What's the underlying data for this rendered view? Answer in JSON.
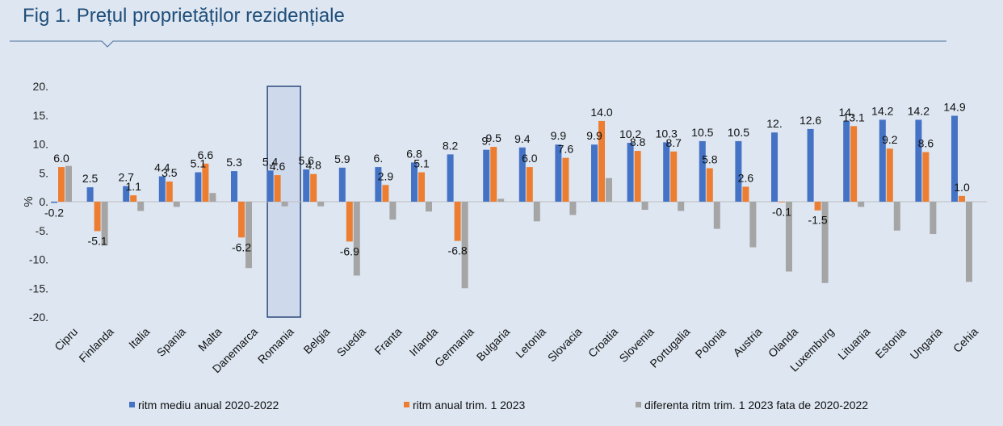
{
  "figure": {
    "title": "Fig 1. Prețul proprietăților rezidențiale"
  },
  "colors": {
    "background": "#dde6f1",
    "title": "#1f4e79",
    "rule": "#4a6f99",
    "highlight_fill": "#cfd9ec",
    "highlight_stroke": "#2c4a7c"
  },
  "chart_data": {
    "type": "bar",
    "title": "",
    "xlabel": "",
    "ylabel": "%",
    "ylim": [
      -20,
      20
    ],
    "yticks": [
      20,
      15,
      10,
      5,
      0,
      -5,
      -10,
      -15,
      -20
    ],
    "ytick_labels": [
      "20.",
      "15.",
      "10.",
      "5.",
      "0.",
      "-5.",
      "-10.",
      "-15.",
      "-20."
    ],
    "grid": false,
    "legend_position": "bottom",
    "highlighted_category": "Romania",
    "categories": [
      "Cipru",
      "Finlanda",
      "Italia",
      "Spania",
      "Malta",
      "Danemarca",
      "Romania",
      "Belgia",
      "Suedia",
      "Franta",
      "Irlanda",
      "Germania",
      "Bulgaria",
      "Letonia",
      "Slovacia",
      "Croatia",
      "Slovenia",
      "Portugalia",
      "Polonia",
      "Austria",
      "Olanda",
      "Luxemburg",
      "Lituania",
      "Estonia",
      "Ungaria",
      "Cehia"
    ],
    "series": [
      {
        "name": "ritm mediu anual 2020-2022",
        "color": "#4472c4",
        "values": [
          -0.2,
          2.5,
          2.7,
          4.4,
          5.1,
          5.3,
          5.4,
          5.6,
          5.9,
          6.0,
          6.8,
          8.2,
          9.0,
          9.4,
          9.9,
          9.9,
          10.2,
          10.3,
          10.5,
          10.5,
          12.0,
          12.6,
          14.0,
          14.2,
          14.2,
          14.9
        ],
        "labels": [
          "-0.2",
          "2.5",
          "2.7",
          "4.4",
          "5.1",
          "5.3",
          "5.4",
          "5.6",
          "5.9",
          "6.",
          "6.8",
          "8.2",
          "9.",
          "9.4",
          "9.9",
          "9.9",
          "10.2",
          "10.3",
          "10.5",
          "10.5",
          "12.",
          "12.6",
          "14.",
          "14.2",
          "14.2",
          "14.9"
        ]
      },
      {
        "name": "ritm anual trim. 1 2023",
        "color": "#ed7d31",
        "values": [
          6.0,
          -5.1,
          1.1,
          3.5,
          6.6,
          -6.2,
          4.6,
          4.8,
          -6.9,
          2.9,
          5.1,
          -6.8,
          9.5,
          6.0,
          7.6,
          14.0,
          8.8,
          8.7,
          5.8,
          2.6,
          -0.1,
          -1.5,
          13.1,
          9.2,
          8.6,
          1.0
        ],
        "labels": [
          "6.0",
          "-5.1",
          "1.1",
          "3.5",
          "6.6",
          "-6.2",
          "4.6",
          "4.8",
          "-6.9",
          "2.9",
          "5.1",
          "-6.8",
          "9.5",
          "6.0",
          "7.6",
          "14.0",
          "8.8",
          "8.7",
          "5.8",
          "2.6",
          "-0.1",
          "-1.5",
          "13.1",
          "9.2",
          "8.6",
          "1.0"
        ]
      },
      {
        "name": "diferenta ritm trim. 1 2023 fata de 2020-2022",
        "color": "#a5a5a5",
        "values": [
          6.2,
          -7.6,
          -1.6,
          -0.9,
          1.5,
          -11.5,
          -0.8,
          -0.8,
          -12.8,
          -3.1,
          -1.7,
          -15.0,
          0.5,
          -3.4,
          -2.3,
          4.1,
          -1.4,
          -1.6,
          -4.7,
          -7.9,
          -12.1,
          -14.1,
          -0.9,
          -5.0,
          -5.6,
          -13.9
        ]
      }
    ]
  }
}
